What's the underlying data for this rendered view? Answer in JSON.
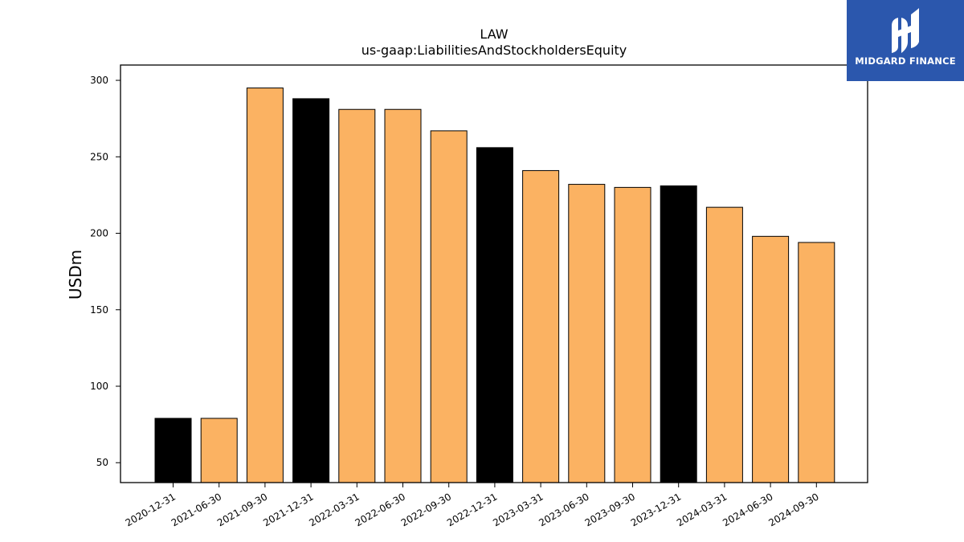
{
  "brand": {
    "name": "MIDGARD FINANCE",
    "colors": {
      "background": "#2b57ad",
      "text": "#ffffff"
    }
  },
  "chart_data": {
    "type": "bar",
    "title": "LAW",
    "subtitle": "us-gaap:LiabilitiesAndStockholdersEquity",
    "xlabel": "",
    "ylabel": "USDm",
    "categories": [
      "2020-12-31",
      "2021-06-30",
      "2021-09-30",
      "2021-12-31",
      "2022-03-31",
      "2022-06-30",
      "2022-09-30",
      "2022-12-31",
      "2023-03-31",
      "2023-06-30",
      "2023-09-30",
      "2023-12-31",
      "2024-03-31",
      "2024-06-30",
      "2024-09-30"
    ],
    "values": [
      79,
      79,
      295,
      288,
      281,
      281,
      267,
      256,
      241,
      232,
      230,
      231,
      217,
      198,
      194
    ],
    "bar_colors": [
      "#000000",
      "#fbb262",
      "#fbb262",
      "#000000",
      "#fbb262",
      "#fbb262",
      "#fbb262",
      "#000000",
      "#fbb262",
      "#fbb262",
      "#fbb262",
      "#000000",
      "#fbb262",
      "#fbb262",
      "#fbb262"
    ],
    "yticks": [
      50,
      100,
      150,
      200,
      250,
      300
    ],
    "ylim": [
      37,
      310
    ],
    "grid": false,
    "legend": "none"
  }
}
